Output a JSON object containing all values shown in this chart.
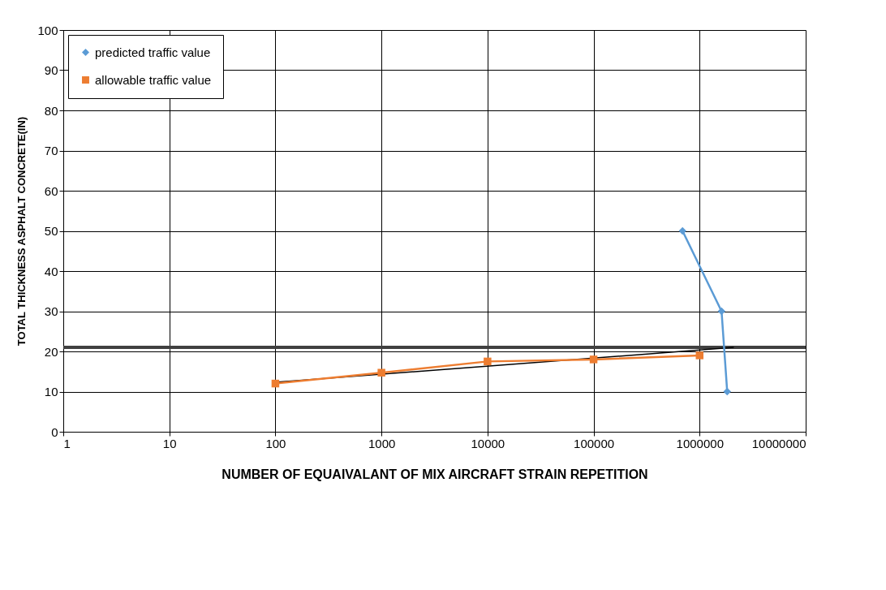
{
  "chart_data": {
    "type": "line",
    "xlabel": "NUMBER  OF EQUAIVALANT  OF MIX AIRCRAFT  STRAIN REPETITION",
    "ylabel": "TOTAL THICKNESS ASPHALT CONCRETE(IN)",
    "log": "x",
    "xlim": [
      1,
      10000000
    ],
    "xticks": [
      1,
      10,
      100,
      1000,
      10000,
      100000,
      1000000,
      10000000
    ],
    "ylim": [
      0,
      100
    ],
    "yticks": [
      0,
      10,
      20,
      30,
      40,
      50,
      60,
      70,
      80,
      90,
      100
    ],
    "grid": true,
    "legend": "top left",
    "series": [
      {
        "type": "line",
        "color": "#000000",
        "x": [
          100,
          2100000
        ],
        "values": [
          12.3,
          21
        ],
        "marker": "none"
      },
      {
        "name": "predicted traffic value",
        "color": "#5b9bd5",
        "x": [
          690000,
          1610000,
          1820000
        ],
        "values": [
          50,
          30,
          10
        ],
        "marker": "diamond"
      },
      {
        "name": "allowable traffic value",
        "color": "#ed7d31",
        "x": [
          100,
          1000,
          10000,
          100000,
          1000000
        ],
        "values": [
          12,
          14.7,
          17.5,
          18,
          19
        ],
        "marker": "square"
      }
    ],
    "ref_lines": [
      {
        "axis": "y",
        "value": 21,
        "color": "#404040"
      }
    ]
  }
}
